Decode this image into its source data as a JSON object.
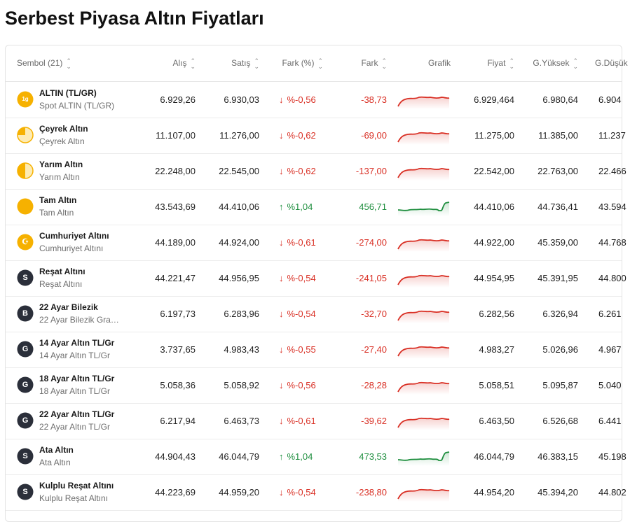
{
  "page": {
    "title": "Serbest Piyasa Altın Fiyatları"
  },
  "columns": {
    "symbol": "Sembol (21)",
    "buy": "Alış",
    "sell": "Satış",
    "change_pct": "Fark (%)",
    "change": "Fark",
    "chart": "Grafik",
    "price": "Fiyat",
    "high": "G.Yüksek",
    "low": "G.Düşük"
  },
  "colors": {
    "down": "#d93025",
    "up": "#1e8e3e",
    "coin_gold": "#f6b100"
  },
  "rows": [
    {
      "symbol": "ALTIN (TL/GR)",
      "name": "Spot ALTIN (TL/GR)",
      "icon": "gram-gold-icon",
      "icon_text": "1g",
      "buy": "6.929,26",
      "sell": "6.930,03",
      "dir": "down",
      "change_pct": "%-0,56",
      "change": "-38,73",
      "price": "6.929,464",
      "high": "6.980,64",
      "low": "6.904"
    },
    {
      "symbol": "Çeyrek Altın",
      "name": "Çeyrek Altın",
      "icon": "quarter-coin-icon",
      "icon_text": "",
      "buy": "11.107,00",
      "sell": "11.276,00",
      "dir": "down",
      "change_pct": "%-0,62",
      "change": "-69,00",
      "price": "11.275,00",
      "high": "11.385,00",
      "low": "11.237"
    },
    {
      "symbol": "Yarım Altın",
      "name": "Yarım Altın",
      "icon": "half-coin-icon",
      "icon_text": "",
      "buy": "22.248,00",
      "sell": "22.545,00",
      "dir": "down",
      "change_pct": "%-0,62",
      "change": "-137,00",
      "price": "22.542,00",
      "high": "22.763,00",
      "low": "22.466"
    },
    {
      "symbol": "Tam Altın",
      "name": "Tam Altın",
      "icon": "full-coin-icon",
      "icon_text": "",
      "buy": "43.543,69",
      "sell": "44.410,06",
      "dir": "up",
      "change_pct": "%1,04",
      "change": "456,71",
      "price": "44.410,06",
      "high": "44.736,41",
      "low": "43.594"
    },
    {
      "symbol": "Cumhuriyet Altını",
      "name": "Cumhuriyet Altını",
      "icon": "crescent-coin-icon",
      "icon_text": "☪",
      "buy": "44.189,00",
      "sell": "44.924,00",
      "dir": "down",
      "change_pct": "%-0,61",
      "change": "-274,00",
      "price": "44.922,00",
      "high": "45.359,00",
      "low": "44.768"
    },
    {
      "symbol": "Reşat Altını",
      "name": "Reşat Altını",
      "icon": "letter-s-icon",
      "icon_text": "S",
      "buy": "44.221,47",
      "sell": "44.956,95",
      "dir": "down",
      "change_pct": "%-0,54",
      "change": "-241,05",
      "price": "44.954,95",
      "high": "45.391,95",
      "low": "44.800"
    },
    {
      "symbol": "22 Ayar Bilezik",
      "name": "22 Ayar Bilezik Gra…",
      "icon": "letter-b-icon",
      "icon_text": "B",
      "buy": "6.197,73",
      "sell": "6.283,96",
      "dir": "down",
      "change_pct": "%-0,54",
      "change": "-32,70",
      "price": "6.282,56",
      "high": "6.326,94",
      "low": "6.261"
    },
    {
      "symbol": "14 Ayar Altın TL/Gr",
      "name": "14 Ayar Altın TL/Gr",
      "icon": "letter-g-icon",
      "icon_text": "G",
      "buy": "3.737,65",
      "sell": "4.983,43",
      "dir": "down",
      "change_pct": "%-0,55",
      "change": "-27,40",
      "price": "4.983,27",
      "high": "5.026,96",
      "low": "4.967"
    },
    {
      "symbol": "18 Ayar Altın TL/Gr",
      "name": "18 Ayar Altın TL/Gr",
      "icon": "letter-g-icon",
      "icon_text": "G",
      "buy": "5.058,36",
      "sell": "5.058,92",
      "dir": "down",
      "change_pct": "%-0,56",
      "change": "-28,28",
      "price": "5.058,51",
      "high": "5.095,87",
      "low": "5.040"
    },
    {
      "symbol": "22 Ayar Altın TL/Gr",
      "name": "22 Ayar Altın TL/Gr",
      "icon": "letter-g-icon",
      "icon_text": "G",
      "buy": "6.217,94",
      "sell": "6.463,73",
      "dir": "down",
      "change_pct": "%-0,61",
      "change": "-39,62",
      "price": "6.463,50",
      "high": "6.526,68",
      "low": "6.441"
    },
    {
      "symbol": "Ata Altın",
      "name": "Ata Altın",
      "icon": "letter-s-icon",
      "icon_text": "S",
      "buy": "44.904,43",
      "sell": "46.044,79",
      "dir": "up",
      "change_pct": "%1,04",
      "change": "473,53",
      "price": "46.044,79",
      "high": "46.383,15",
      "low": "45.198"
    },
    {
      "symbol": "Kulplu Reşat Altını",
      "name": "Kulplu Reşat Altını",
      "icon": "letter-s-icon",
      "icon_text": "S",
      "buy": "44.223,69",
      "sell": "44.959,20",
      "dir": "down",
      "change_pct": "%-0,54",
      "change": "-238,80",
      "price": "44.954,20",
      "high": "45.394,20",
      "low": "44.802"
    }
  ]
}
